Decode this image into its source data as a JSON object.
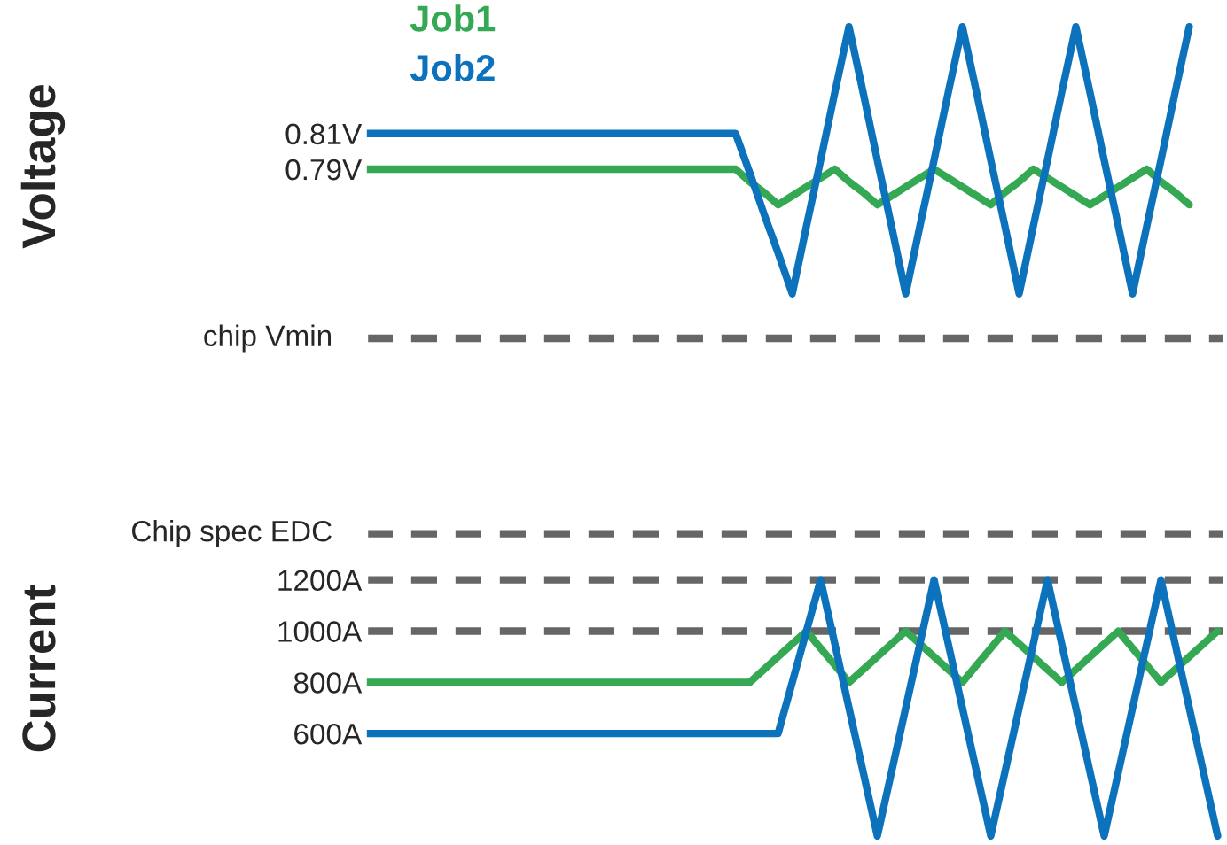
{
  "chart_data": [
    {
      "type": "line",
      "ylabel": "Voltage",
      "grid": false,
      "tick_labels": "y",
      "ylim": [
        0.69,
        0.875
      ],
      "categories": [
        null,
        null,
        null,
        null,
        null,
        null,
        null,
        null,
        null,
        null,
        null,
        null,
        null,
        null,
        null,
        null,
        null,
        null,
        null,
        null,
        null,
        null,
        null,
        null,
        null,
        null,
        null,
        null,
        null,
        null,
        null,
        null,
        null,
        null,
        null,
        null,
        null,
        null,
        null,
        null,
        null,
        null,
        null,
        null,
        null,
        null,
        null,
        null,
        null,
        null,
        null,
        null,
        null,
        null,
        null,
        null,
        null,
        null,
        null,
        null,
        null
      ],
      "yticks": [
        {
          "value": 0.81,
          "label": "0.81V"
        },
        {
          "value": 0.79,
          "label": "0.79V"
        }
      ],
      "series": [
        {
          "name": "Job1",
          "color": "#34a853",
          "values": [
            0.79,
            0.79,
            0.79,
            0.79,
            0.79,
            0.79,
            0.79,
            0.79,
            0.79,
            0.79,
            0.79,
            0.79,
            0.79,
            0.79,
            0.79,
            0.79,
            0.79,
            0.79,
            0.79,
            0.79,
            0.79,
            0.79,
            0.79,
            0.79,
            0.79,
            0.79,
            0.79,
            0.783,
            0.777,
            0.77,
            0.775,
            0.78,
            0.785,
            0.79,
            0.783,
            0.777,
            0.77,
            0.775,
            0.78,
            0.785,
            0.79,
            0.785,
            0.78,
            0.775,
            0.77,
            0.777,
            0.783,
            0.79,
            0.785,
            0.78,
            0.775,
            0.77,
            0.775,
            0.78,
            0.785,
            0.79,
            0.783,
            0.777,
            0.77,
            null,
            null
          ]
        },
        {
          "name": "Job2",
          "color": "#0b72bb",
          "values": [
            0.81,
            0.81,
            0.81,
            0.81,
            0.81,
            0.81,
            0.81,
            0.81,
            0.81,
            0.81,
            0.81,
            0.81,
            0.81,
            0.81,
            0.81,
            0.81,
            0.81,
            0.81,
            0.81,
            0.81,
            0.81,
            0.81,
            0.81,
            0.81,
            0.81,
            0.81,
            0.81,
            0.788,
            0.765,
            0.743,
            0.72,
            0.758,
            0.795,
            0.833,
            0.87,
            0.833,
            0.795,
            0.758,
            0.72,
            0.758,
            0.795,
            0.833,
            0.87,
            0.833,
            0.795,
            0.758,
            0.72,
            0.758,
            0.795,
            0.833,
            0.87,
            0.833,
            0.795,
            0.758,
            0.72,
            0.758,
            0.795,
            0.833,
            0.87,
            null,
            null
          ]
        }
      ],
      "ref_lines": [
        {
          "axis": "y",
          "value": 0.695,
          "label": "chip Vmin",
          "color": "#666666",
          "line_style": "dashed"
        }
      ]
    },
    {
      "type": "line",
      "ylabel": "Current",
      "grid": false,
      "tick_labels": "y",
      "ylim": [
        165,
        1415
      ],
      "categories": [
        null,
        null,
        null,
        null,
        null,
        null,
        null,
        null,
        null,
        null,
        null,
        null,
        null,
        null,
        null,
        null,
        null,
        null,
        null,
        null,
        null,
        null,
        null,
        null,
        null,
        null,
        null,
        null,
        null,
        null,
        null,
        null,
        null,
        null,
        null,
        null,
        null,
        null,
        null,
        null,
        null,
        null,
        null,
        null,
        null,
        null,
        null,
        null,
        null,
        null,
        null,
        null,
        null,
        null,
        null,
        null,
        null,
        null,
        null,
        null,
        null
      ],
      "yticks": [
        {
          "value": 1200,
          "label": "1200A"
        },
        {
          "value": 1000,
          "label": "1000A"
        },
        {
          "value": 800,
          "label": "800A"
        },
        {
          "value": 600,
          "label": "600A"
        }
      ],
      "series": [
        {
          "color": "#34a853",
          "values": [
            800,
            800,
            800,
            800,
            800,
            800,
            800,
            800,
            800,
            800,
            800,
            800,
            800,
            800,
            800,
            800,
            800,
            800,
            800,
            800,
            800,
            800,
            800,
            800,
            800,
            800,
            800,
            800,
            850,
            900,
            950,
            1000,
            933,
            867,
            800,
            850,
            900,
            950,
            1000,
            950,
            900,
            850,
            800,
            867,
            933,
            1000,
            950,
            900,
            850,
            800,
            850,
            900,
            950,
            1000,
            933,
            867,
            800,
            850,
            900,
            950,
            1000
          ]
        },
        {
          "color": "#0b72bb",
          "values": [
            600,
            600,
            600,
            600,
            600,
            600,
            600,
            600,
            600,
            600,
            600,
            600,
            600,
            600,
            600,
            600,
            600,
            600,
            600,
            600,
            600,
            600,
            600,
            600,
            600,
            600,
            600,
            600,
            600,
            600,
            800,
            1000,
            1200,
            950,
            700,
            450,
            200,
            450,
            700,
            950,
            1200,
            950,
            700,
            450,
            200,
            450,
            700,
            950,
            1200,
            950,
            700,
            450,
            200,
            450,
            700,
            950,
            1200,
            950,
            700,
            450,
            200
          ]
        }
      ],
      "ref_lines": [
        {
          "axis": "y",
          "value": 1380,
          "label": "Chip spec EDC",
          "color": "#666666",
          "line_style": "dashed"
        },
        {
          "axis": "y",
          "value": 1200,
          "color": "#666666",
          "line_style": "dashed"
        },
        {
          "axis": "y",
          "value": 1000,
          "color": "#666666",
          "line_style": "dashed"
        }
      ]
    }
  ]
}
